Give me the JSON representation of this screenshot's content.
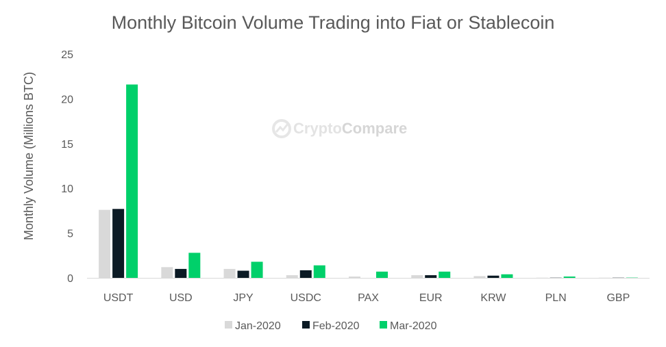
{
  "chart_data": {
    "type": "bar",
    "title": "Monthly Bitcoin Volume Trading into Fiat or Stablecoin",
    "xlabel": "",
    "ylabel": "Monthly Volume (Millions BTC)",
    "ylim": [
      0,
      25
    ],
    "yticks": [
      0,
      5,
      10,
      15,
      20,
      25
    ],
    "grid": false,
    "legend_position": "bottom",
    "categories": [
      "USDT",
      "USD",
      "JPY",
      "USDC",
      "PAX",
      "EUR",
      "KRW",
      "PLN",
      "GBP"
    ],
    "series": [
      {
        "name": "Jan-2020",
        "color": "#d9d9d9",
        "values": [
          7.6,
          1.2,
          1.0,
          0.3,
          0.15,
          0.3,
          0.2,
          0.02,
          0.02
        ]
      },
      {
        "name": "Feb-2020",
        "color": "#0b1a24",
        "values": [
          7.7,
          1.0,
          0.8,
          0.85,
          0.0,
          0.3,
          0.25,
          0.02,
          0.02
        ]
      },
      {
        "name": "Mar-2020",
        "color": "#00d06a",
        "values": [
          21.6,
          2.8,
          1.8,
          1.4,
          0.7,
          0.7,
          0.4,
          0.15,
          0.03
        ]
      }
    ]
  },
  "watermark": {
    "text_part1": "Crypto",
    "text_part2": "Compare",
    "icon": "cryptocompare-logo-icon"
  }
}
